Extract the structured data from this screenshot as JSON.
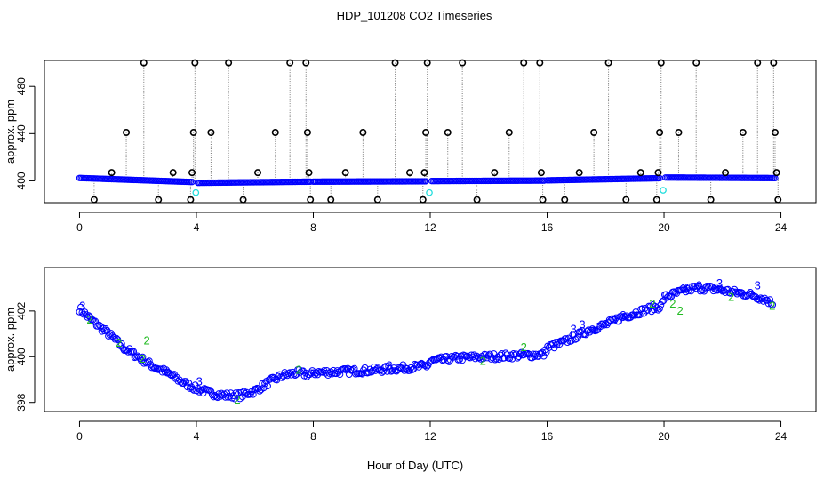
{
  "title": "HDP_101208  CO2 Timeseries",
  "xlabel": "Hour of Day (UTC)",
  "colors": {
    "black": "#000000",
    "blue": "#0000ff",
    "cyan": "#22dddd",
    "green": "#22bb22",
    "grey": "#777777"
  },
  "chart_data": [
    {
      "type": "scatter",
      "panel": "top",
      "ylabel": "approx. ppm",
      "xlim": [
        -1.2,
        25.2
      ],
      "ylim": [
        381.5,
        502
      ],
      "xticks": [
        0,
        4,
        8,
        12,
        16,
        20,
        24
      ],
      "yticks": [
        400,
        440,
        480
      ],
      "baseline_segments": [
        {
          "x0": 0.0,
          "x1": 3.85,
          "y0": 402.4,
          "y1": 399.0
        },
        {
          "x0": 4.05,
          "x1": 7.9,
          "y0": 398.3,
          "y1": 399.3
        },
        {
          "x0": 8.0,
          "x1": 11.85,
          "y0": 399.3,
          "y1": 399.6
        },
        {
          "x0": 12.05,
          "x1": 15.9,
          "y0": 399.8,
          "y1": 400.2
        },
        {
          "x0": 16.0,
          "x1": 19.85,
          "y0": 400.4,
          "y1": 402.2
        },
        {
          "x0": 20.05,
          "x1": 23.8,
          "y0": 402.8,
          "y1": 402.3
        }
      ],
      "outliers": [
        {
          "x": 0.5,
          "y": 384
        },
        {
          "x": 1.1,
          "y": 407
        },
        {
          "x": 1.6,
          "y": 441
        },
        {
          "x": 2.2,
          "y": 500
        },
        {
          "x": 2.7,
          "y": 384
        },
        {
          "x": 3.2,
          "y": 407
        },
        {
          "x": 3.8,
          "y": 384
        },
        {
          "x": 3.85,
          "y": 407
        },
        {
          "x": 3.9,
          "y": 441
        },
        {
          "x": 3.95,
          "y": 500
        },
        {
          "x": 4.5,
          "y": 441
        },
        {
          "x": 5.1,
          "y": 500
        },
        {
          "x": 5.6,
          "y": 384
        },
        {
          "x": 6.1,
          "y": 407
        },
        {
          "x": 6.7,
          "y": 441
        },
        {
          "x": 7.2,
          "y": 500
        },
        {
          "x": 7.75,
          "y": 500
        },
        {
          "x": 7.8,
          "y": 441
        },
        {
          "x": 7.85,
          "y": 407
        },
        {
          "x": 7.9,
          "y": 384
        },
        {
          "x": 8.6,
          "y": 384
        },
        {
          "x": 9.1,
          "y": 407
        },
        {
          "x": 9.7,
          "y": 441
        },
        {
          "x": 10.2,
          "y": 384
        },
        {
          "x": 10.8,
          "y": 500
        },
        {
          "x": 11.3,
          "y": 407
        },
        {
          "x": 11.75,
          "y": 384
        },
        {
          "x": 11.8,
          "y": 407
        },
        {
          "x": 11.85,
          "y": 441
        },
        {
          "x": 11.9,
          "y": 500
        },
        {
          "x": 12.6,
          "y": 441
        },
        {
          "x": 13.1,
          "y": 500
        },
        {
          "x": 13.6,
          "y": 384
        },
        {
          "x": 14.2,
          "y": 407
        },
        {
          "x": 14.7,
          "y": 441
        },
        {
          "x": 15.2,
          "y": 500
        },
        {
          "x": 15.75,
          "y": 500
        },
        {
          "x": 15.8,
          "y": 407
        },
        {
          "x": 15.85,
          "y": 384
        },
        {
          "x": 16.6,
          "y": 384
        },
        {
          "x": 17.1,
          "y": 407
        },
        {
          "x": 17.6,
          "y": 441
        },
        {
          "x": 18.1,
          "y": 500
        },
        {
          "x": 18.7,
          "y": 384
        },
        {
          "x": 19.2,
          "y": 407
        },
        {
          "x": 19.75,
          "y": 384
        },
        {
          "x": 19.8,
          "y": 407
        },
        {
          "x": 19.85,
          "y": 441
        },
        {
          "x": 19.9,
          "y": 500
        },
        {
          "x": 20.5,
          "y": 441
        },
        {
          "x": 21.1,
          "y": 500
        },
        {
          "x": 21.6,
          "y": 384
        },
        {
          "x": 22.1,
          "y": 407
        },
        {
          "x": 22.7,
          "y": 441
        },
        {
          "x": 23.2,
          "y": 500
        },
        {
          "x": 23.75,
          "y": 500
        },
        {
          "x": 23.8,
          "y": 441
        },
        {
          "x": 23.85,
          "y": 407
        },
        {
          "x": 23.9,
          "y": 384
        }
      ],
      "cyan_points": [
        {
          "x": 3.98,
          "y": 390
        },
        {
          "x": 11.97,
          "y": 390
        },
        {
          "x": 19.97,
          "y": 392
        }
      ]
    },
    {
      "type": "scatter",
      "panel": "bottom",
      "ylabel": "approx. ppm",
      "xlim": [
        -1.2,
        25.2
      ],
      "ylim": [
        397.6,
        403.9
      ],
      "xticks": [
        0,
        4,
        8,
        12,
        16,
        20,
        24
      ],
      "yticks": [
        398,
        400,
        402
      ],
      "blue_circle_curve": [
        [
          0.0,
          402.1
        ],
        [
          0.5,
          401.5
        ],
        [
          1.0,
          401.0
        ],
        [
          1.5,
          400.4
        ],
        [
          2.0,
          400.0
        ],
        [
          2.5,
          399.6
        ],
        [
          3.0,
          399.3
        ],
        [
          3.5,
          398.9
        ],
        [
          4.0,
          398.6
        ],
        [
          4.5,
          398.4
        ],
        [
          5.0,
          398.3
        ],
        [
          5.5,
          398.3
        ],
        [
          6.0,
          398.5
        ],
        [
          6.5,
          398.9
        ],
        [
          7.0,
          399.2
        ],
        [
          7.5,
          399.3
        ],
        [
          7.9,
          399.2
        ],
        [
          8.0,
          399.3
        ],
        [
          9.0,
          399.35
        ],
        [
          10.0,
          399.4
        ],
        [
          11.0,
          399.5
        ],
        [
          11.9,
          399.6
        ],
        [
          12.0,
          399.8
        ],
        [
          13.0,
          399.95
        ],
        [
          14.0,
          400.0
        ],
        [
          15.0,
          400.05
        ],
        [
          15.9,
          400.1
        ],
        [
          16.0,
          400.4
        ],
        [
          16.5,
          400.6
        ],
        [
          17.0,
          400.9
        ],
        [
          17.5,
          401.2
        ],
        [
          18.0,
          401.4
        ],
        [
          18.5,
          401.7
        ],
        [
          19.0,
          401.9
        ],
        [
          19.5,
          402.1
        ],
        [
          19.9,
          402.2
        ],
        [
          20.0,
          402.6
        ],
        [
          20.5,
          402.8
        ],
        [
          21.0,
          403.0
        ],
        [
          21.5,
          403.0
        ],
        [
          22.0,
          402.9
        ],
        [
          22.5,
          402.8
        ],
        [
          23.0,
          402.7
        ],
        [
          23.5,
          402.5
        ],
        [
          23.75,
          402.3
        ]
      ],
      "label_points": [
        {
          "x": 0.1,
          "y": 402.2,
          "label": "3",
          "color": "#0000ff"
        },
        {
          "x": 0.35,
          "y": 401.6,
          "label": "2",
          "color": "#22bb22"
        },
        {
          "x": 1.35,
          "y": 400.6,
          "label": "2",
          "color": "#22bb22"
        },
        {
          "x": 2.3,
          "y": 400.7,
          "label": "2",
          "color": "#22bb22"
        },
        {
          "x": 2.15,
          "y": 399.9,
          "label": "2",
          "color": "#22bb22"
        },
        {
          "x": 3.0,
          "y": 399.3,
          "label": "3",
          "color": "#0000ff"
        },
        {
          "x": 4.1,
          "y": 398.9,
          "label": "3",
          "color": "#0000ff"
        },
        {
          "x": 5.4,
          "y": 398.1,
          "label": "2",
          "color": "#22bb22"
        },
        {
          "x": 7.5,
          "y": 399.4,
          "label": "2",
          "color": "#22bb22"
        },
        {
          "x": 10.6,
          "y": 399.6,
          "label": "3",
          "color": "#0000ff"
        },
        {
          "x": 13.8,
          "y": 399.8,
          "label": "2",
          "color": "#22bb22"
        },
        {
          "x": 15.2,
          "y": 400.4,
          "label": "2",
          "color": "#22bb22"
        },
        {
          "x": 16.9,
          "y": 401.2,
          "label": "3",
          "color": "#0000ff"
        },
        {
          "x": 17.2,
          "y": 401.4,
          "label": "3",
          "color": "#0000ff"
        },
        {
          "x": 18.6,
          "y": 401.8,
          "label": "3",
          "color": "#0000ff"
        },
        {
          "x": 19.6,
          "y": 402.3,
          "label": "2",
          "color": "#22bb22"
        },
        {
          "x": 20.3,
          "y": 402.3,
          "label": "2",
          "color": "#22bb22"
        },
        {
          "x": 20.55,
          "y": 402.0,
          "label": "2",
          "color": "#22bb22"
        },
        {
          "x": 20.7,
          "y": 403.0,
          "label": "3",
          "color": "#0000ff"
        },
        {
          "x": 21.2,
          "y": 403.1,
          "label": "3",
          "color": "#0000ff"
        },
        {
          "x": 21.9,
          "y": 403.2,
          "label": "3",
          "color": "#0000ff"
        },
        {
          "x": 22.3,
          "y": 402.6,
          "label": "2",
          "color": "#22bb22"
        },
        {
          "x": 23.2,
          "y": 403.1,
          "label": "3",
          "color": "#0000ff"
        },
        {
          "x": 23.7,
          "y": 402.2,
          "label": "2",
          "color": "#22bb22"
        }
      ]
    }
  ]
}
